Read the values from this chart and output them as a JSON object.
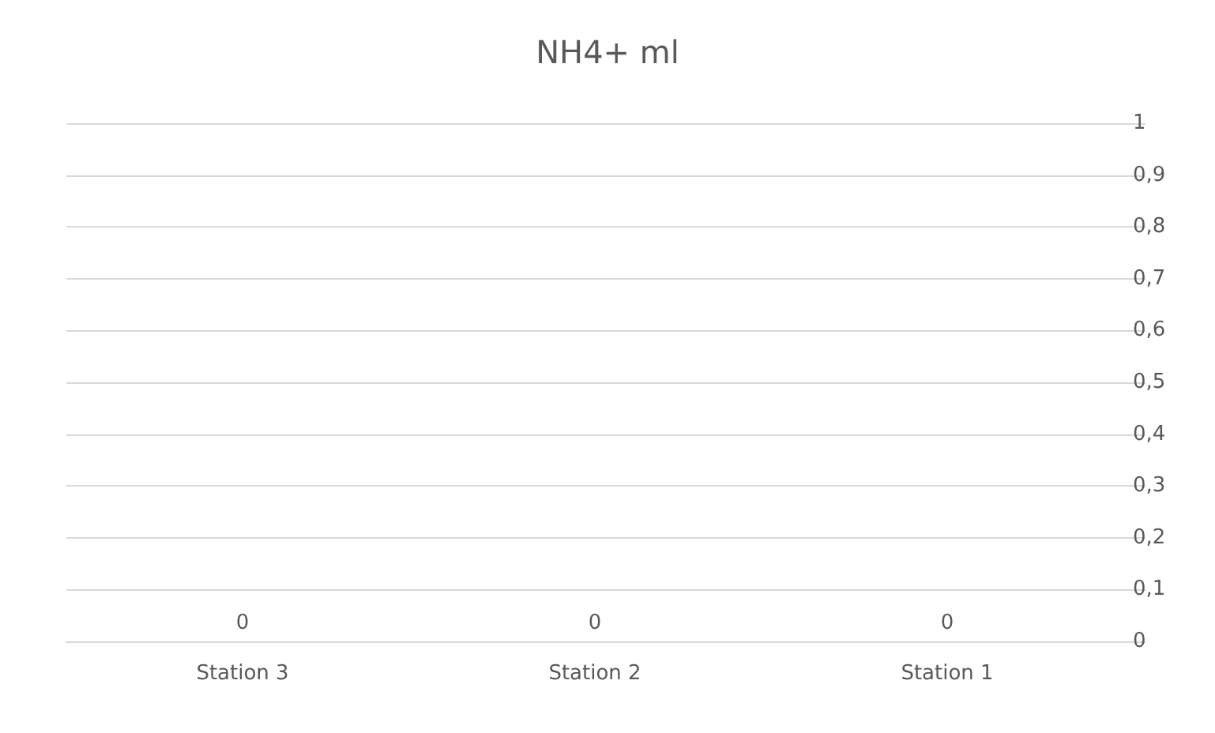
{
  "chart_data": {
    "type": "bar",
    "title": "NH4+ ml",
    "categories": [
      "Station 3",
      "Station 2",
      "Station 1"
    ],
    "values": [
      0,
      0,
      0
    ],
    "data_labels": true,
    "ylim": [
      0,
      1
    ],
    "yticks": [
      0,
      {
        "value": 0.1,
        "label": "0,1"
      },
      {
        "value": 0.2,
        "label": "0,2"
      },
      {
        "value": 0.3,
        "label": "0,3"
      },
      {
        "value": 0.4,
        "label": "0,4"
      },
      {
        "value": 0.5,
        "label": "0,5"
      },
      {
        "value": 0.6,
        "label": "0,6"
      },
      {
        "value": 0.7,
        "label": "0,7"
      },
      {
        "value": 0.8,
        "label": "0,8"
      },
      {
        "value": 0.9,
        "label": "0,9"
      },
      1
    ],
    "grid": true
  }
}
